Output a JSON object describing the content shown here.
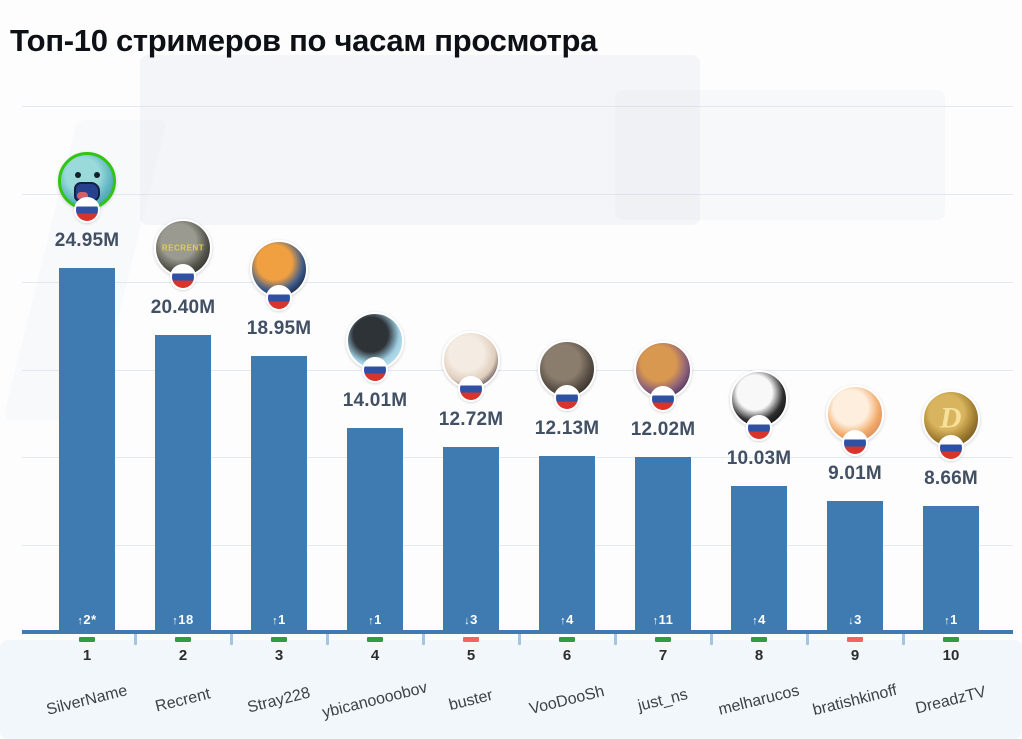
{
  "chart_data": {
    "type": "bar",
    "title": "Топ-10 стримеров по часам просмотра",
    "xlabel": "",
    "ylabel": "",
    "ylim": [
      0,
      26
    ],
    "grid": "faint horizontal lines every 6M",
    "legend": "none",
    "categories": [
      "SilverName",
      "Recrent",
      "Stray228",
      "ybicanoooobov",
      "buster",
      "VooDooSh",
      "just_ns",
      "melharucos",
      "bratishkinoff",
      "DreadzTV"
    ],
    "values": [
      24.95,
      20.4,
      18.95,
      14.01,
      12.72,
      12.13,
      12.02,
      10.03,
      9.01,
      8.66
    ],
    "value_labels": [
      "24.95M",
      "20.40M",
      "18.95M",
      "14.01M",
      "12.72M",
      "12.13M",
      "12.02M",
      "10.03M",
      "9.01M",
      "8.66M"
    ],
    "ranks": [
      1,
      2,
      3,
      4,
      5,
      6,
      7,
      8,
      9,
      10
    ],
    "streamers": [
      {
        "rank": "1",
        "name": "SilverName",
        "hours_label": "24.95M",
        "hours_millions": 24.95,
        "flag": "russia",
        "change": {
          "direction": "up",
          "arrow_glyph": "↑",
          "amount": "2*"
        },
        "avatar": {
          "icon": "silvername-avatar-icon",
          "colors": [
            "#9adada",
            "#62b7c4",
            "#3f93a6"
          ],
          "ring": "#31c413",
          "face": true,
          "text": "",
          "text_color": "",
          "text_size": 0
        }
      },
      {
        "rank": "2",
        "name": "Recrent",
        "hours_label": "20.40M",
        "hours_millions": 20.4,
        "flag": "russia",
        "change": {
          "direction": "up",
          "arrow_glyph": "↑",
          "amount": "18"
        },
        "avatar": {
          "icon": "recrent-avatar-icon",
          "colors": [
            "#9a9a90",
            "#55544c",
            "#23221e"
          ],
          "ring": null,
          "face": false,
          "text": "RECRENT",
          "text_color": "#ded04e",
          "text_size": 8
        }
      },
      {
        "rank": "3",
        "name": "Stray228",
        "hours_label": "18.95M",
        "hours_millions": 18.95,
        "flag": "russia",
        "change": {
          "direction": "up",
          "arrow_glyph": "↑",
          "amount": "1"
        },
        "avatar": {
          "icon": "stray228-avatar-icon",
          "colors": [
            "#f0a040",
            "#3c5a8a",
            "#0a0e1a"
          ],
          "ring": null,
          "face": false,
          "text": "",
          "text_color": "",
          "text_size": 0
        }
      },
      {
        "rank": "4",
        "name": "ybicanoooobov",
        "hours_label": "14.01M",
        "hours_millions": 14.01,
        "flag": "russia",
        "change": {
          "direction": "up",
          "arrow_glyph": "↑",
          "amount": "1"
        },
        "avatar": {
          "icon": "ybicanoooobov-avatar-icon",
          "colors": [
            "#2e3338",
            "#9fcfe2",
            "#cfe8f2"
          ],
          "ring": null,
          "face": false,
          "text": "",
          "text_color": "",
          "text_size": 0
        }
      },
      {
        "rank": "5",
        "name": "buster",
        "hours_label": "12.72M",
        "hours_millions": 12.72,
        "flag": "russia",
        "change": {
          "direction": "down",
          "arrow_glyph": "↓",
          "amount": "3"
        },
        "avatar": {
          "icon": "buster-avatar-icon",
          "colors": [
            "#f4ebe2",
            "#e0cdbc",
            "#16161e"
          ],
          "ring": null,
          "face": false,
          "text": "",
          "text_color": "",
          "text_size": 0
        }
      },
      {
        "rank": "6",
        "name": "VooDooSh",
        "hours_label": "12.13M",
        "hours_millions": 12.13,
        "flag": "russia",
        "change": {
          "direction": "up",
          "arrow_glyph": "↑",
          "amount": "4"
        },
        "avatar": {
          "icon": "voodoosh-avatar-icon",
          "colors": [
            "#8a7d6e",
            "#564c42",
            "#262220"
          ],
          "ring": null,
          "face": false,
          "text": "",
          "text_color": "",
          "text_size": 0
        }
      },
      {
        "rank": "7",
        "name": "just_ns",
        "hours_label": "12.02M",
        "hours_millions": 12.02,
        "flag": "russia",
        "change": {
          "direction": "up",
          "arrow_glyph": "↑",
          "amount": "11"
        },
        "avatar": {
          "icon": "just-ns-avatar-icon",
          "colors": [
            "#d9984f",
            "#8a5f7a",
            "#33204a"
          ],
          "ring": null,
          "face": false,
          "text": "",
          "text_color": "",
          "text_size": 0
        }
      },
      {
        "rank": "8",
        "name": "melharucos",
        "hours_label": "10.03M",
        "hours_millions": 10.03,
        "flag": "russia",
        "change": {
          "direction": "up",
          "arrow_glyph": "↑",
          "amount": "4"
        },
        "avatar": {
          "icon": "melharucos-avatar-icon",
          "colors": [
            "#f8f8f8",
            "#2e2e2e",
            "#080808"
          ],
          "ring": null,
          "face": false,
          "text": "",
          "text_color": "",
          "text_size": 0
        }
      },
      {
        "rank": "9",
        "name": "bratishkinoff",
        "hours_label": "9.01M",
        "hours_millions": 9.01,
        "flag": "russia",
        "change": {
          "direction": "down",
          "arrow_glyph": "↓",
          "amount": "3"
        },
        "avatar": {
          "icon": "bratishkinoff-avatar-icon",
          "colors": [
            "#fdeedd",
            "#f2a967",
            "#cc7f62"
          ],
          "ring": null,
          "face": false,
          "text": "",
          "text_color": "",
          "text_size": 0
        }
      },
      {
        "rank": "10",
        "name": "DreadzTV",
        "hours_label": "8.66M",
        "hours_millions": 8.66,
        "flag": "russia",
        "change": {
          "direction": "up",
          "arrow_glyph": "↑",
          "amount": "1"
        },
        "avatar": {
          "icon": "dreadztv-avatar-icon",
          "colors": [
            "#d8b45e",
            "#a07c30",
            "#62481c"
          ],
          "ring": null,
          "face": false,
          "text": "D",
          "text_color": "#f6e09a",
          "text_size": 30,
          "serif": true
        }
      }
    ]
  },
  "colors": {
    "bar": "#3f7ab0",
    "axis": "#3f7ab0",
    "minor_tick": "#a9c6e0",
    "up": "#2f9e41",
    "down": "#f4635e",
    "value_text": "#425064",
    "rank_text": "#2d2d2d",
    "name_text": "#3c4146",
    "title_text": "#0d1014",
    "change_text": "#ffffff",
    "flag_white": "#ffffff",
    "flag_blue": "#2e51a3",
    "flag_red": "#d8342c"
  }
}
